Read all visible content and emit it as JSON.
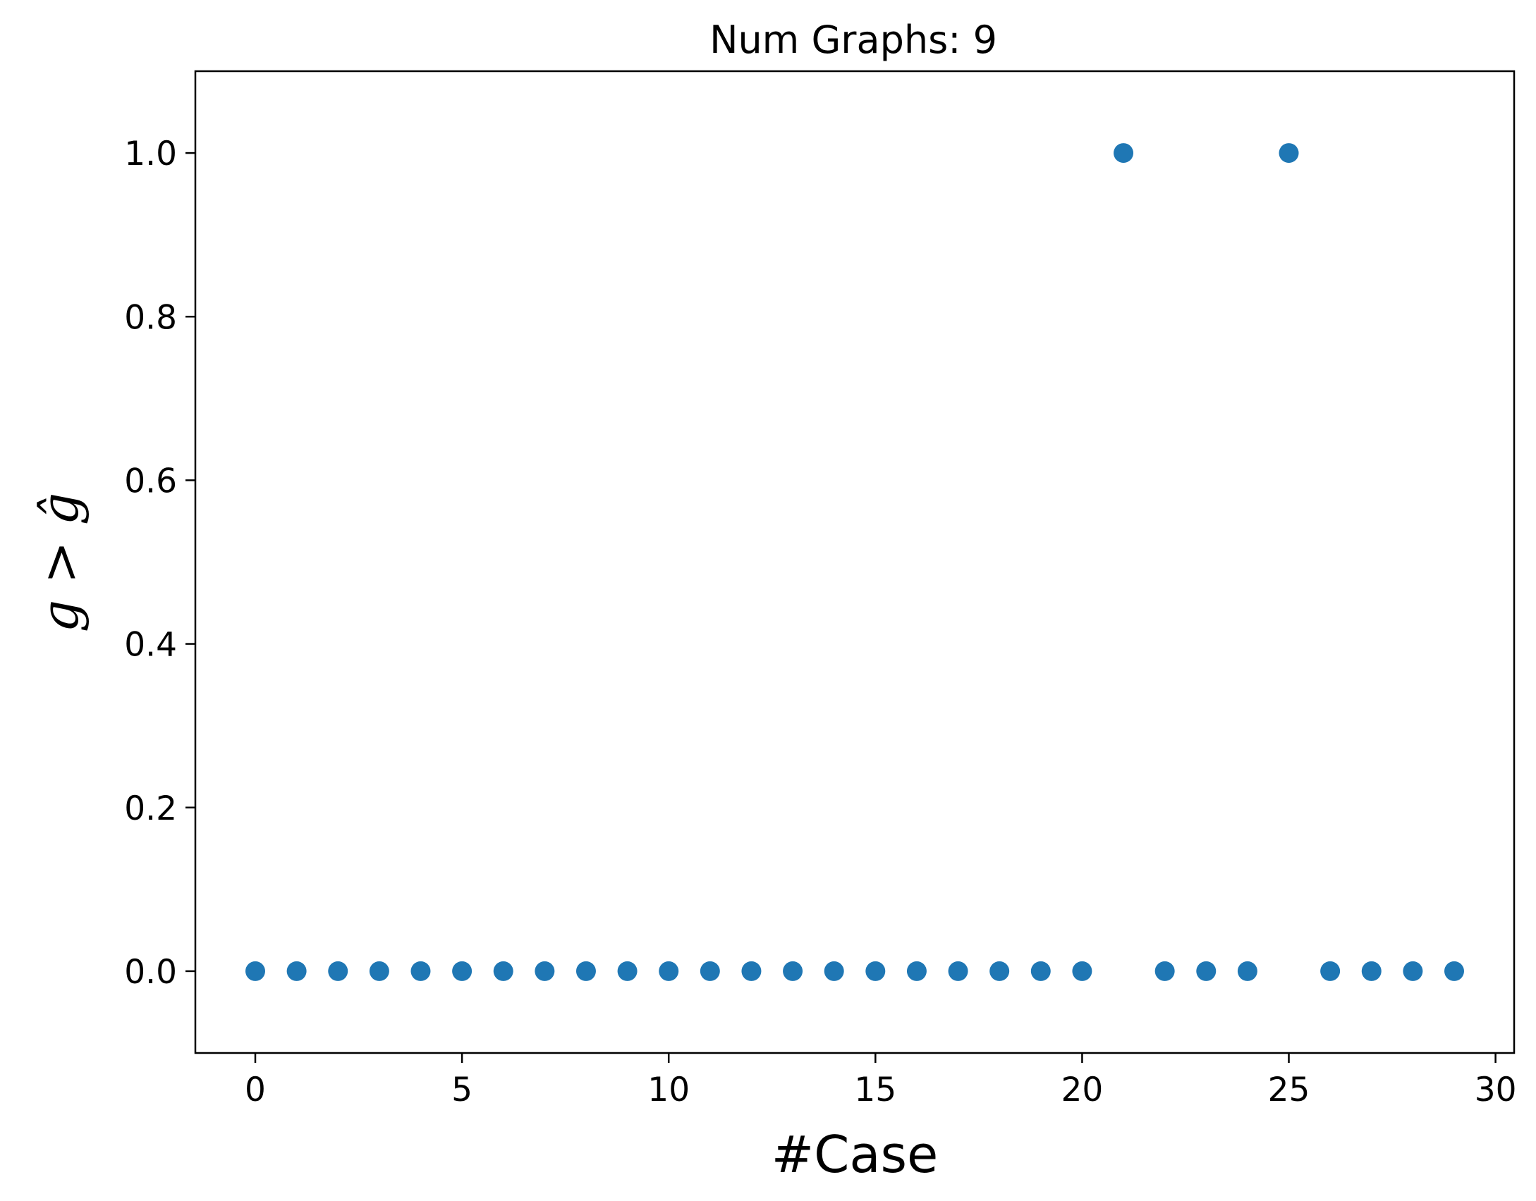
{
  "chart_data": {
    "type": "scatter",
    "title": "Num Graphs: 9",
    "xlabel": "#Case",
    "ylabel": "g > ĝ",
    "xlim": [
      -1.45,
      30.45
    ],
    "ylim": [
      -0.1,
      1.1
    ],
    "xticks": [
      0,
      5,
      10,
      15,
      20,
      25,
      30
    ],
    "xtick_labels": [
      "0",
      "5",
      "10",
      "15",
      "20",
      "25",
      "30"
    ],
    "yticks": [
      0.0,
      0.2,
      0.4,
      0.6,
      0.8,
      1.0
    ],
    "ytick_labels": [
      "0.0",
      "0.2",
      "0.4",
      "0.6",
      "0.8",
      "1.0"
    ],
    "grid": false,
    "color": "#1f77b4",
    "x": [
      0,
      1,
      2,
      3,
      4,
      5,
      6,
      7,
      8,
      9,
      10,
      11,
      12,
      13,
      14,
      15,
      16,
      17,
      18,
      19,
      20,
      21,
      22,
      23,
      24,
      25,
      26,
      27,
      28,
      29
    ],
    "y": [
      0,
      0,
      0,
      0,
      0,
      0,
      0,
      0,
      0,
      0,
      0,
      0,
      0,
      0,
      0,
      0,
      0,
      0,
      0,
      0,
      0,
      1,
      0,
      0,
      0,
      1,
      0,
      0,
      0,
      0
    ]
  }
}
